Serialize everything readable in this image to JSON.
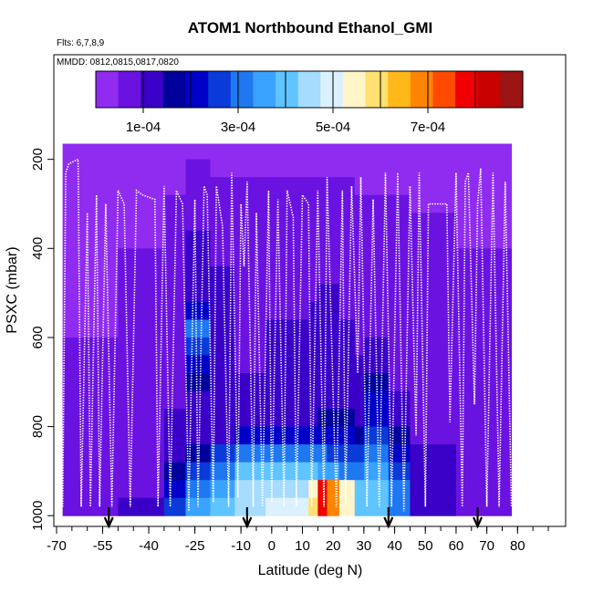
{
  "chart_data": {
    "type": "heatmap",
    "title": "ATOM1 Northbound Ethanol_GMI",
    "flights_label": "Flts: 6,7,8,9",
    "dates_label": "MMDD: 0812,0815,0817,0820",
    "xlabel": "Latitude (deg N)",
    "ylabel": "PSXC (mbar)",
    "xlim": [
      -70,
      90
    ],
    "ylim": [
      1020,
      0
    ],
    "x_ticks": [
      -70,
      -55,
      -40,
      -25,
      -10,
      0,
      10,
      20,
      30,
      40,
      50,
      60,
      70,
      80
    ],
    "y_ticks": [
      200,
      400,
      600,
      800,
      1000
    ],
    "colorbar": {
      "min": 0,
      "max": 0.0009,
      "tick_values": [
        0.0001,
        0.0003,
        0.0005,
        0.0007
      ],
      "tick_labels": [
        "1e-04",
        "3e-04",
        "5e-04",
        "7e-04"
      ],
      "colors": [
        "#8f2cf0",
        "#6a13e0",
        "#3a00c8",
        "#00009a",
        "#0000c8",
        "#0a3ad8",
        "#1f78f0",
        "#3aa2ff",
        "#5fc4ff",
        "#a5dcff",
        "#dcf1ff",
        "#fff5c8",
        "#ffe070",
        "#ffb81a",
        "#ff8500",
        "#ff4a00",
        "#f00000",
        "#c80000",
        "#9a1414"
      ]
    },
    "data_extent": {
      "lat": [
        -68,
        78
      ],
      "p_top": 165,
      "p_bottom": 1000
    },
    "field_levels_mbar": [
      180,
      220,
      260,
      300,
      340,
      380,
      420,
      460,
      500,
      540,
      580,
      620,
      660,
      700,
      740,
      780,
      820,
      860,
      900,
      940,
      980
    ],
    "field_sections": [
      {
        "lat": [
          -68,
          -50
        ],
        "levels": [
          2e-05,
          2e-05,
          2e-05,
          2e-05,
          3e-05,
          4e-05,
          4e-05,
          4e-05,
          4e-05,
          4e-05,
          4e-05,
          5e-05,
          5e-05,
          5e-05,
          5e-05,
          5e-05,
          6e-05,
          6e-05,
          6e-05,
          6e-05,
          7e-05
        ]
      },
      {
        "lat": [
          -50,
          -35
        ],
        "levels": [
          2e-05,
          2e-05,
          3e-05,
          3e-05,
          4e-05,
          4e-05,
          5e-05,
          5e-05,
          5e-05,
          6e-05,
          6e-05,
          6e-05,
          7e-05,
          7e-05,
          7e-05,
          7e-05,
          8e-05,
          8e-05,
          8e-05,
          9e-05,
          0.0001
        ]
      },
      {
        "lat": [
          -35,
          -28
        ],
        "levels": [
          2e-05,
          3e-05,
          4e-05,
          5e-05,
          6e-05,
          7e-05,
          7e-05,
          8e-05,
          8e-05,
          8e-05,
          8e-05,
          8e-05,
          8e-05,
          9e-05,
          9e-05,
          0.0001,
          0.00011,
          0.00013,
          0.00016,
          0.0002,
          0.00025
        ]
      },
      {
        "lat": [
          -28,
          -20
        ],
        "levels": [
          2e-05,
          5e-05,
          7e-05,
          8e-05,
          9e-05,
          0.0001,
          0.0001,
          0.00011,
          0.00014,
          0.00022,
          0.0003,
          0.00028,
          0.00022,
          0.00016,
          0.00012,
          0.00011,
          0.00012,
          0.00018,
          0.00024,
          0.0003,
          0.00034
        ]
      },
      {
        "lat": [
          -20,
          -12
        ],
        "levels": [
          2e-05,
          4e-05,
          6e-05,
          7e-05,
          8e-05,
          8e-05,
          9e-05,
          0.0001,
          0.00011,
          0.00012,
          0.00012,
          0.00012,
          0.00011,
          0.0001,
          0.0001,
          0.0001,
          0.00014,
          0.00025,
          0.00032,
          0.00036,
          0.0004
        ]
      },
      {
        "lat": [
          -12,
          -2
        ],
        "levels": [
          2e-05,
          3e-05,
          5e-05,
          6e-05,
          7e-05,
          7e-05,
          8e-05,
          8e-05,
          8e-05,
          8e-05,
          8e-05,
          9e-05,
          9e-05,
          0.0001,
          0.00012,
          0.00012,
          0.0002,
          0.0003,
          0.0004,
          0.00044,
          0.00046
        ]
      },
      {
        "lat": [
          -2,
          12
        ],
        "levels": [
          2e-05,
          3e-05,
          5e-05,
          6e-05,
          7e-05,
          7e-05,
          8e-05,
          8e-05,
          9e-05,
          9e-05,
          0.0001,
          0.0001,
          0.0001,
          0.00011,
          0.00011,
          0.00013,
          0.0002,
          0.00032,
          0.00042,
          0.00045,
          0.00048
        ]
      },
      {
        "lat": [
          12,
          15
        ],
        "levels": [
          2e-05,
          3e-05,
          5e-05,
          6e-05,
          7e-05,
          8e-05,
          8e-05,
          9e-05,
          9e-05,
          0.0001,
          0.0001,
          0.0001,
          0.00011,
          0.00012,
          0.00012,
          0.00014,
          0.0002,
          0.0003,
          0.0004,
          0.00055,
          0.0006
        ]
      },
      {
        "lat": [
          15,
          18
        ],
        "levels": [
          2e-05,
          3e-05,
          5e-05,
          6e-05,
          7e-05,
          8e-05,
          8e-05,
          9e-05,
          0.0001,
          0.0001,
          0.0001,
          0.00011,
          0.00011,
          0.00012,
          0.00013,
          0.00015,
          0.0002,
          0.0003,
          0.00035,
          0.0008,
          0.0008
        ]
      },
      {
        "lat": [
          18,
          22
        ],
        "levels": [
          2e-05,
          3e-05,
          5e-05,
          6e-05,
          7e-05,
          8e-05,
          8e-05,
          9e-05,
          0.0001,
          0.0001,
          0.0001,
          0.00011,
          0.00011,
          0.00012,
          0.00013,
          0.00015,
          0.0002,
          0.00028,
          0.00035,
          0.00068,
          0.00068
        ]
      },
      {
        "lat": [
          22,
          27
        ],
        "levels": [
          2e-05,
          3e-05,
          5e-05,
          6e-05,
          7e-05,
          7e-05,
          8e-05,
          8e-05,
          9e-05,
          9e-05,
          0.0001,
          0.0001,
          0.00011,
          0.00012,
          0.00013,
          0.00015,
          0.0002,
          0.00026,
          0.00032,
          0.00055,
          0.00055
        ]
      },
      {
        "lat": [
          27,
          30
        ],
        "levels": [
          2e-05,
          3e-05,
          4e-05,
          5e-05,
          6e-05,
          6e-05,
          7e-05,
          7e-05,
          8e-05,
          8e-05,
          9e-05,
          9e-05,
          0.0001,
          0.00011,
          0.00012,
          0.00013,
          0.00018,
          0.00024,
          0.0003,
          0.0004,
          0.00042
        ]
      },
      {
        "lat": [
          30,
          38
        ],
        "levels": [
          2e-05,
          3e-05,
          4e-05,
          5e-05,
          6e-05,
          6e-05,
          7e-05,
          7e-05,
          8e-05,
          8e-05,
          9e-05,
          0.0001,
          0.00011,
          0.00015,
          0.0002,
          0.00022,
          0.00026,
          0.0003,
          0.00034,
          0.00038,
          0.0004
        ]
      },
      {
        "lat": [
          38,
          45
        ],
        "levels": [
          2e-05,
          3e-05,
          4e-05,
          5e-05,
          5e-05,
          6e-05,
          6e-05,
          6e-05,
          7e-05,
          7e-05,
          7e-05,
          8e-05,
          8e-05,
          9e-05,
          0.0001,
          0.00012,
          0.00016,
          0.00022,
          0.00026,
          0.0003,
          0.00032
        ]
      },
      {
        "lat": [
          45,
          60
        ],
        "levels": [
          2e-05,
          2e-05,
          3e-05,
          4e-05,
          5e-05,
          5e-05,
          5e-05,
          6e-05,
          6e-05,
          6e-05,
          6e-05,
          7e-05,
          7e-05,
          7e-05,
          8e-05,
          8e-05,
          9e-05,
          0.0001,
          0.00011,
          0.00012,
          0.00013
        ]
      },
      {
        "lat": [
          60,
          78
        ],
        "levels": [
          2e-05,
          2e-05,
          3e-05,
          3e-05,
          4e-05,
          4e-05,
          5e-05,
          5e-05,
          5e-05,
          5e-05,
          6e-05,
          6e-05,
          6e-05,
          7e-05,
          7e-05,
          7e-05,
          8e-05,
          8e-05,
          9e-05,
          9e-05,
          9e-05
        ]
      }
    ],
    "arrow_latitudes": [
      -53,
      -8,
      38,
      67
    ],
    "flight_track": [
      [
        -68,
        980
      ],
      [
        -67,
        230
      ],
      [
        -66,
        210
      ],
      [
        -63,
        200
      ],
      [
        -62,
        980
      ],
      [
        -60,
        320
      ],
      [
        -59,
        980
      ],
      [
        -57,
        280
      ],
      [
        -56,
        980
      ],
      [
        -54,
        300
      ],
      [
        -52,
        980
      ],
      [
        -50,
        270
      ],
      [
        -48,
        300
      ],
      [
        -46,
        980
      ],
      [
        -44,
        270
      ],
      [
        -42,
        280
      ],
      [
        -38,
        290
      ],
      [
        -37,
        980
      ],
      [
        -35,
        260
      ],
      [
        -33,
        980
      ],
      [
        -31,
        270
      ],
      [
        -29,
        300
      ],
      [
        -27,
        990
      ],
      [
        -25,
        290
      ],
      [
        -24,
        980
      ],
      [
        -22,
        260
      ],
      [
        -21,
        280
      ],
      [
        -19,
        970
      ],
      [
        -18,
        260
      ],
      [
        -16,
        350
      ],
      [
        -14,
        980
      ],
      [
        -13,
        230
      ],
      [
        -11,
        960
      ],
      [
        -10,
        300
      ],
      [
        -9,
        440
      ],
      [
        -8,
        250
      ],
      [
        -6,
        980
      ],
      [
        -5,
        320
      ],
      [
        -3,
        980
      ],
      [
        -1,
        270
      ],
      [
        0,
        970
      ],
      [
        2,
        290
      ],
      [
        4,
        980
      ],
      [
        5,
        270
      ],
      [
        7,
        330
      ],
      [
        8,
        980
      ],
      [
        10,
        280
      ],
      [
        12,
        300
      ],
      [
        13,
        980
      ],
      [
        15,
        270
      ],
      [
        17,
        980
      ],
      [
        18,
        240
      ],
      [
        21,
        980
      ],
      [
        23,
        270
      ],
      [
        24,
        980
      ],
      [
        26,
        260
      ],
      [
        28,
        680
      ],
      [
        29,
        240
      ],
      [
        31,
        980
      ],
      [
        33,
        290
      ],
      [
        35,
        980
      ],
      [
        37,
        230
      ],
      [
        39,
        980
      ],
      [
        41,
        230
      ],
      [
        43,
        990
      ],
      [
        45,
        260
      ],
      [
        47,
        820
      ],
      [
        48,
        230
      ],
      [
        50,
        980
      ],
      [
        51,
        300
      ],
      [
        54,
        300
      ],
      [
        57,
        300
      ],
      [
        58,
        790
      ],
      [
        60,
        230
      ],
      [
        62,
        980
      ],
      [
        63,
        250
      ],
      [
        64,
        230
      ],
      [
        66,
        750
      ],
      [
        67,
        300
      ],
      [
        68,
        220
      ],
      [
        70,
        980
      ],
      [
        72,
        230
      ],
      [
        74,
        980
      ],
      [
        76,
        250
      ],
      [
        78,
        980
      ]
    ]
  }
}
